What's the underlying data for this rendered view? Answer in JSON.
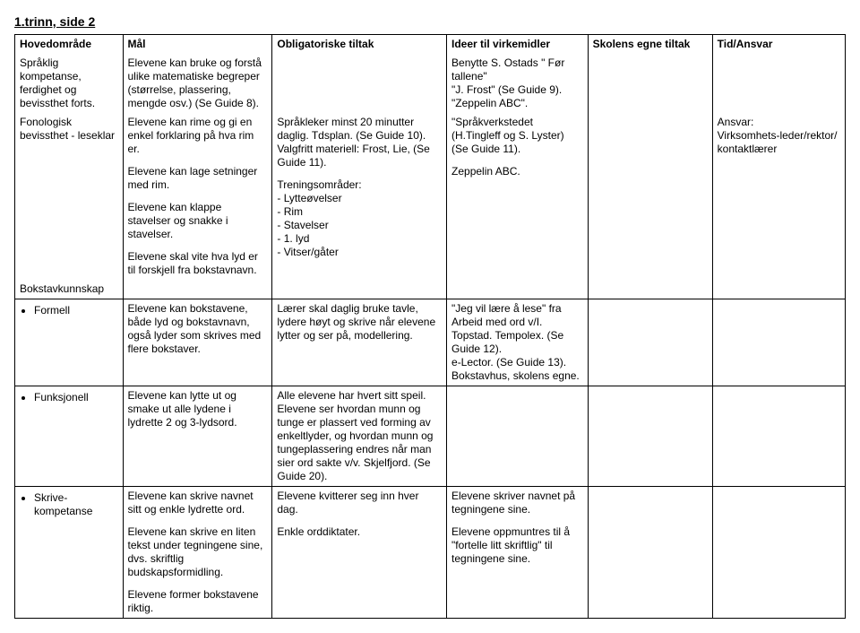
{
  "page_title": "1.trinn, side 2",
  "columns": [
    "Hovedområde",
    "Mål",
    "Obligatoriske tiltak",
    "Ideer til virkemidler",
    "Skolens egne tiltak",
    "Tid/Ansvar"
  ],
  "row1": {
    "omrade": "Språklig kompetanse, ferdighet og bevissthet forts.",
    "mal": "Elevene kan bruke og forstå ulike matematiske begreper (størrelse, plassering, mengde osv.) (Se Guide 8).",
    "ideer": "Benytte S. Ostads \" Før tallene\"\n\"J. Frost\" (Se Guide 9).\n\"Zeppelin ABC\"."
  },
  "row2": {
    "omrade": "Fonologisk bevissthet - leseklar",
    "mal_p1": "Elevene kan rime og gi en enkel forklaring på hva rim er.",
    "mal_p2": "Elevene kan lage setninger med rim.",
    "mal_p3": "Elevene kan klappe stavelser og snakke i stavelser.",
    "mal_p4": "Elevene skal vite hva lyd er til forskjell fra bokstavnavn.",
    "obl_p1": "Språkleker minst 20 minutter daglig. Tdsplan.  (Se Guide 10). Valgfritt materiell: Frost, Lie, (Se Guide 11).",
    "obl_p2_head": "Treningsområder:",
    "obl_list": [
      "- Lytteøvelser",
      "- Rim",
      "- Stavelser",
      "- 1. lyd",
      "- Vitser/gåter"
    ],
    "ideer_p1": "\"Språkverkstedet (H.Tingleff og S. Lyster) (Se Guide 11).",
    "ideer_p2": "Zeppelin ABC.",
    "ansvar": "Ansvar:\nVirksomhets-leder/rektor/\nkontaktlærer"
  },
  "row3": {
    "omrade": "Bokstavkunnskap"
  },
  "row4": {
    "omrade": "Formell",
    "mal": "Elevene kan bokstavene, både lyd og bokstavnavn, også lyder som skrives med flere bokstaver.",
    "obl": "Lærer skal daglig bruke tavle, lydere høyt og skrive når elevene lytter og ser på, modellering.",
    "ideer": "\"Jeg vil lære å lese\" fra Arbeid med ord v/I. Topstad. Tempolex. (Se Guide 12).\ne-Lector. (Se Guide 13).\nBokstavhus, skolens egne."
  },
  "row5": {
    "omrade": "Funksjonell",
    "mal": "Elevene kan lytte ut og smake ut alle lydene i lydrette 2 og 3-lydsord.",
    "obl": "Alle elevene har hvert sitt speil. Elevene ser hvordan munn og tunge er plassert ved forming av enkeltlyder, og hvordan munn og tungeplassering endres når man sier ord sakte v/v. Skjelfjord. (Se Guide 20)."
  },
  "row6": {
    "omrade": "Skrive-kompetanse",
    "mal_p1": "Elevene kan skrive navnet sitt og enkle lydrette ord.",
    "mal_p2": "Elevene kan skrive en liten tekst under tegningene sine, dvs. skriftlig budskapsformidling.",
    "mal_p3": "Elevene former bokstavene riktig.",
    "obl_p1": "Elevene kvitterer seg inn hver dag.",
    "obl_p2": "Enkle orddiktater.",
    "ideer_p1": "Elevene skriver navnet på tegningene sine.",
    "ideer_p2": "Elevene oppmuntres til å \"fortelle litt skriftlig\" til tegningene sine."
  }
}
